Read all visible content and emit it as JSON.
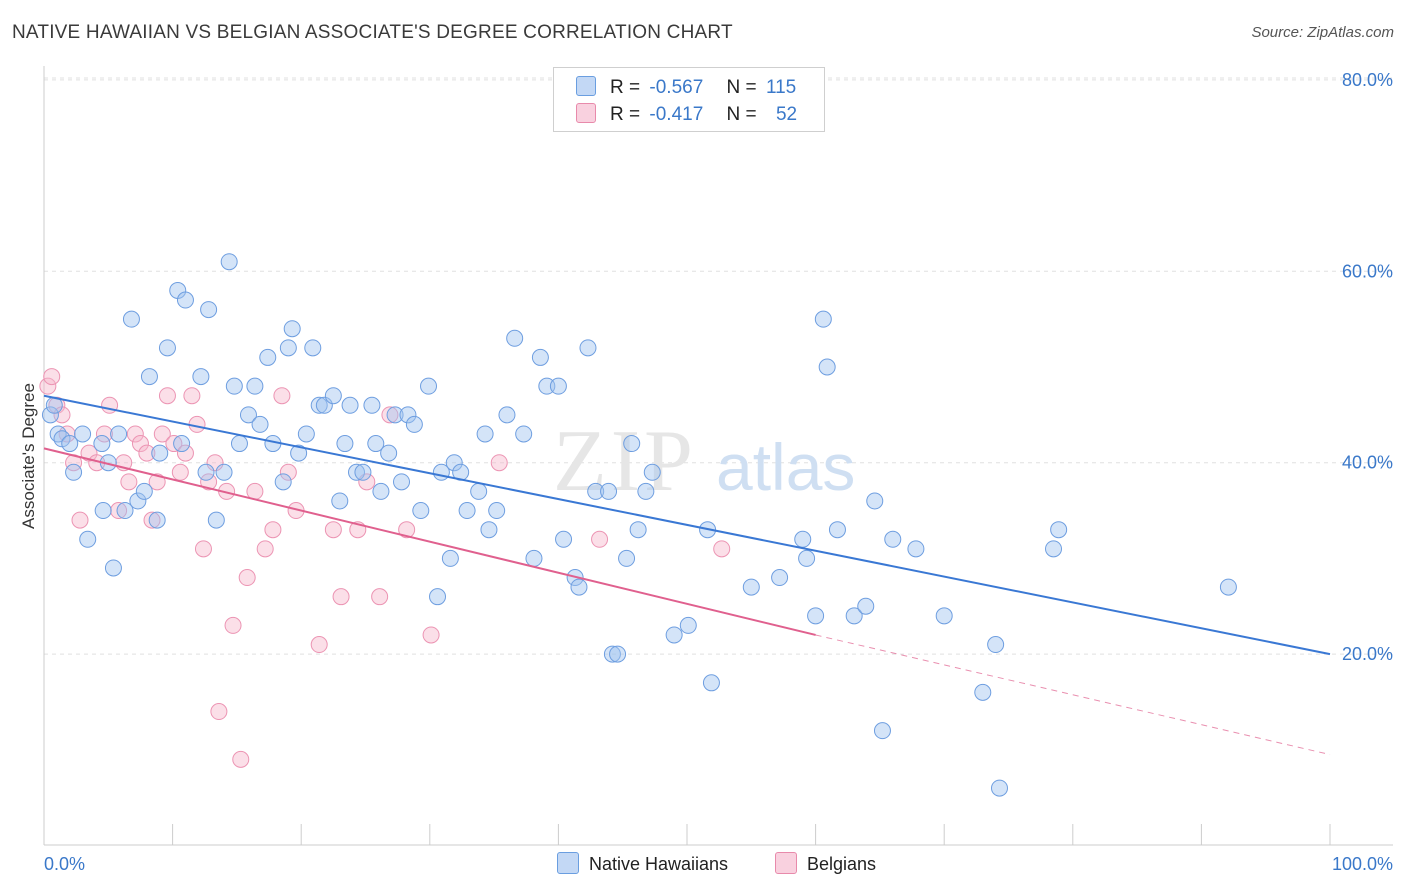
{
  "title": "NATIVE HAWAIIAN VS BELGIAN ASSOCIATE'S DEGREE CORRELATION CHART",
  "source": "Source: ZipAtlas.com",
  "watermark": {
    "zip": "ZIP",
    "atlas": "atlas"
  },
  "legend": {
    "rows": [
      {
        "r_label": "R =",
        "r_value": "-0.567",
        "n_label": "N =",
        "n_value": "115",
        "color": "#a9c8f0",
        "border": "#6a9ee0"
      },
      {
        "r_label": "R =",
        "r_value": "-0.417",
        "n_label": "N =",
        "n_value": "52",
        "color": "#f7c1d3",
        "border": "#e88aab"
      }
    ],
    "series_labels": [
      "Native Hawaiians",
      "Belgians"
    ]
  },
  "colors": {
    "blue": "#3a78d4",
    "blue_fill": "rgba(160,195,240,0.45)",
    "blue_stroke": "#6e9ee0",
    "pink": "#e0608e",
    "pink_fill": "rgba(247,185,205,0.45)",
    "pink_stroke": "#ec94b3",
    "axis_label": "#3a78c9",
    "grid": "#dddddd"
  },
  "chart_data": {
    "type": "scatter",
    "title": "NATIVE HAWAIIAN VS BELGIAN ASSOCIATE'S DEGREE CORRELATION CHART",
    "xlabel": "",
    "ylabel": "Associate's Degree",
    "xlim": [
      0,
      100
    ],
    "ylim": [
      0,
      82
    ],
    "x_tick_labels": [
      "0.0%",
      "100.0%"
    ],
    "y_ticks": [
      20,
      40,
      60,
      80
    ],
    "y_tick_labels": [
      "20.0%",
      "40.0%",
      "60.0%",
      "80.0%"
    ],
    "grid": true,
    "legend_position": "top-center",
    "series": [
      {
        "name": "Native Hawaiians",
        "color": "#3a78d4",
        "trend": {
          "x0": 0,
          "y0": 47,
          "x1": 100,
          "y1": 20
        },
        "points": [
          [
            0.5,
            45
          ],
          [
            0.8,
            46
          ],
          [
            1.1,
            43
          ],
          [
            1.4,
            42.5
          ],
          [
            2,
            42
          ],
          [
            2.3,
            39
          ],
          [
            3,
            43
          ],
          [
            3.4,
            32
          ],
          [
            4.5,
            42
          ],
          [
            4.6,
            35
          ],
          [
            5,
            40
          ],
          [
            5.4,
            29
          ],
          [
            5.8,
            43
          ],
          [
            6.3,
            35
          ],
          [
            6.8,
            55
          ],
          [
            7.3,
            36
          ],
          [
            7.8,
            37
          ],
          [
            8.2,
            49
          ],
          [
            8.8,
            34
          ],
          [
            9,
            41
          ],
          [
            9.6,
            52
          ],
          [
            10.4,
            58
          ],
          [
            10.7,
            42
          ],
          [
            11,
            57
          ],
          [
            12.2,
            49
          ],
          [
            12.6,
            39
          ],
          [
            12.8,
            56
          ],
          [
            13.4,
            34
          ],
          [
            14,
            39
          ],
          [
            14.4,
            61
          ],
          [
            14.8,
            48
          ],
          [
            15.2,
            42
          ],
          [
            15.9,
            45
          ],
          [
            16.4,
            48
          ],
          [
            16.8,
            44
          ],
          [
            17.4,
            51
          ],
          [
            17.8,
            42
          ],
          [
            18.6,
            38
          ],
          [
            19,
            52
          ],
          [
            19.3,
            54
          ],
          [
            19.8,
            41
          ],
          [
            20.4,
            43
          ],
          [
            20.9,
            52
          ],
          [
            21.4,
            46
          ],
          [
            21.8,
            46
          ],
          [
            22.5,
            47
          ],
          [
            23,
            36
          ],
          [
            23.4,
            42
          ],
          [
            23.8,
            46
          ],
          [
            24.3,
            39
          ],
          [
            24.8,
            39
          ],
          [
            25.5,
            46
          ],
          [
            25.8,
            42
          ],
          [
            26.2,
            37
          ],
          [
            26.8,
            41
          ],
          [
            27.3,
            45
          ],
          [
            27.8,
            38
          ],
          [
            28.3,
            45
          ],
          [
            28.8,
            44
          ],
          [
            29.3,
            35
          ],
          [
            29.9,
            48
          ],
          [
            30.6,
            26
          ],
          [
            30.9,
            39
          ],
          [
            31.6,
            30
          ],
          [
            31.9,
            40
          ],
          [
            32.4,
            39
          ],
          [
            32.9,
            35
          ],
          [
            33.8,
            37
          ],
          [
            34.3,
            43
          ],
          [
            34.6,
            33
          ],
          [
            35.2,
            35
          ],
          [
            36,
            45
          ],
          [
            36.6,
            53
          ],
          [
            37.3,
            43
          ],
          [
            38.1,
            30
          ],
          [
            38.6,
            51
          ],
          [
            39.1,
            48
          ],
          [
            40,
            48
          ],
          [
            40.4,
            32
          ],
          [
            41.3,
            28
          ],
          [
            41.6,
            27
          ],
          [
            42.3,
            52
          ],
          [
            42.9,
            37
          ],
          [
            43.9,
            37
          ],
          [
            44.2,
            20
          ],
          [
            44.6,
            20
          ],
          [
            45.3,
            30
          ],
          [
            45.7,
            42
          ],
          [
            46.2,
            33
          ],
          [
            46.8,
            37
          ],
          [
            47.3,
            39
          ],
          [
            49,
            22
          ],
          [
            50.1,
            23
          ],
          [
            51.6,
            33
          ],
          [
            51.9,
            17
          ],
          [
            55,
            27
          ],
          [
            57.2,
            28
          ],
          [
            59,
            32
          ],
          [
            59.3,
            30
          ],
          [
            60,
            24
          ],
          [
            60.6,
            55
          ],
          [
            60.9,
            50
          ],
          [
            61.7,
            33
          ],
          [
            63,
            24
          ],
          [
            63.9,
            25
          ],
          [
            64.6,
            36
          ],
          [
            65.2,
            12
          ],
          [
            66,
            32
          ],
          [
            67.8,
            31
          ],
          [
            70,
            24
          ],
          [
            73,
            16
          ],
          [
            74,
            21
          ],
          [
            74.3,
            6
          ],
          [
            78.5,
            31
          ],
          [
            78.9,
            33
          ],
          [
            92.1,
            27
          ]
        ]
      },
      {
        "name": "Belgians",
        "color": "#e0608e",
        "trend": {
          "x0": 0,
          "y0": 41.5,
          "x1": 60,
          "y1": 22,
          "dash_x1": 100,
          "dash_y1": 9.5
        },
        "points": [
          [
            0.3,
            48
          ],
          [
            0.6,
            49
          ],
          [
            1.0,
            46
          ],
          [
            1.4,
            45
          ],
          [
            1.8,
            43
          ],
          [
            2.3,
            40
          ],
          [
            2.8,
            34
          ],
          [
            3.5,
            41
          ],
          [
            4.1,
            40
          ],
          [
            4.7,
            43
          ],
          [
            5.1,
            46
          ],
          [
            5.8,
            35
          ],
          [
            6.2,
            40
          ],
          [
            6.6,
            38
          ],
          [
            7.1,
            43
          ],
          [
            7.5,
            42
          ],
          [
            8,
            41
          ],
          [
            8.4,
            34
          ],
          [
            8.8,
            38
          ],
          [
            9.2,
            43
          ],
          [
            9.6,
            47
          ],
          [
            10.1,
            42
          ],
          [
            10.6,
            39
          ],
          [
            11,
            41
          ],
          [
            11.5,
            47
          ],
          [
            11.9,
            44
          ],
          [
            12.4,
            31
          ],
          [
            12.8,
            38
          ],
          [
            13.3,
            40
          ],
          [
            13.6,
            14
          ],
          [
            14.2,
            37
          ],
          [
            14.7,
            23
          ],
          [
            15.3,
            9
          ],
          [
            15.8,
            28
          ],
          [
            16.4,
            37
          ],
          [
            17.2,
            31
          ],
          [
            17.8,
            33
          ],
          [
            18.5,
            47
          ],
          [
            19,
            39
          ],
          [
            19.6,
            35
          ],
          [
            21.4,
            21
          ],
          [
            22.5,
            33
          ],
          [
            23.1,
            26
          ],
          [
            24.4,
            33
          ],
          [
            25.1,
            38
          ],
          [
            26.1,
            26
          ],
          [
            26.9,
            45
          ],
          [
            28.2,
            33
          ],
          [
            30.1,
            22
          ],
          [
            35.4,
            40
          ],
          [
            43.2,
            32
          ],
          [
            52.7,
            31
          ]
        ]
      }
    ]
  }
}
